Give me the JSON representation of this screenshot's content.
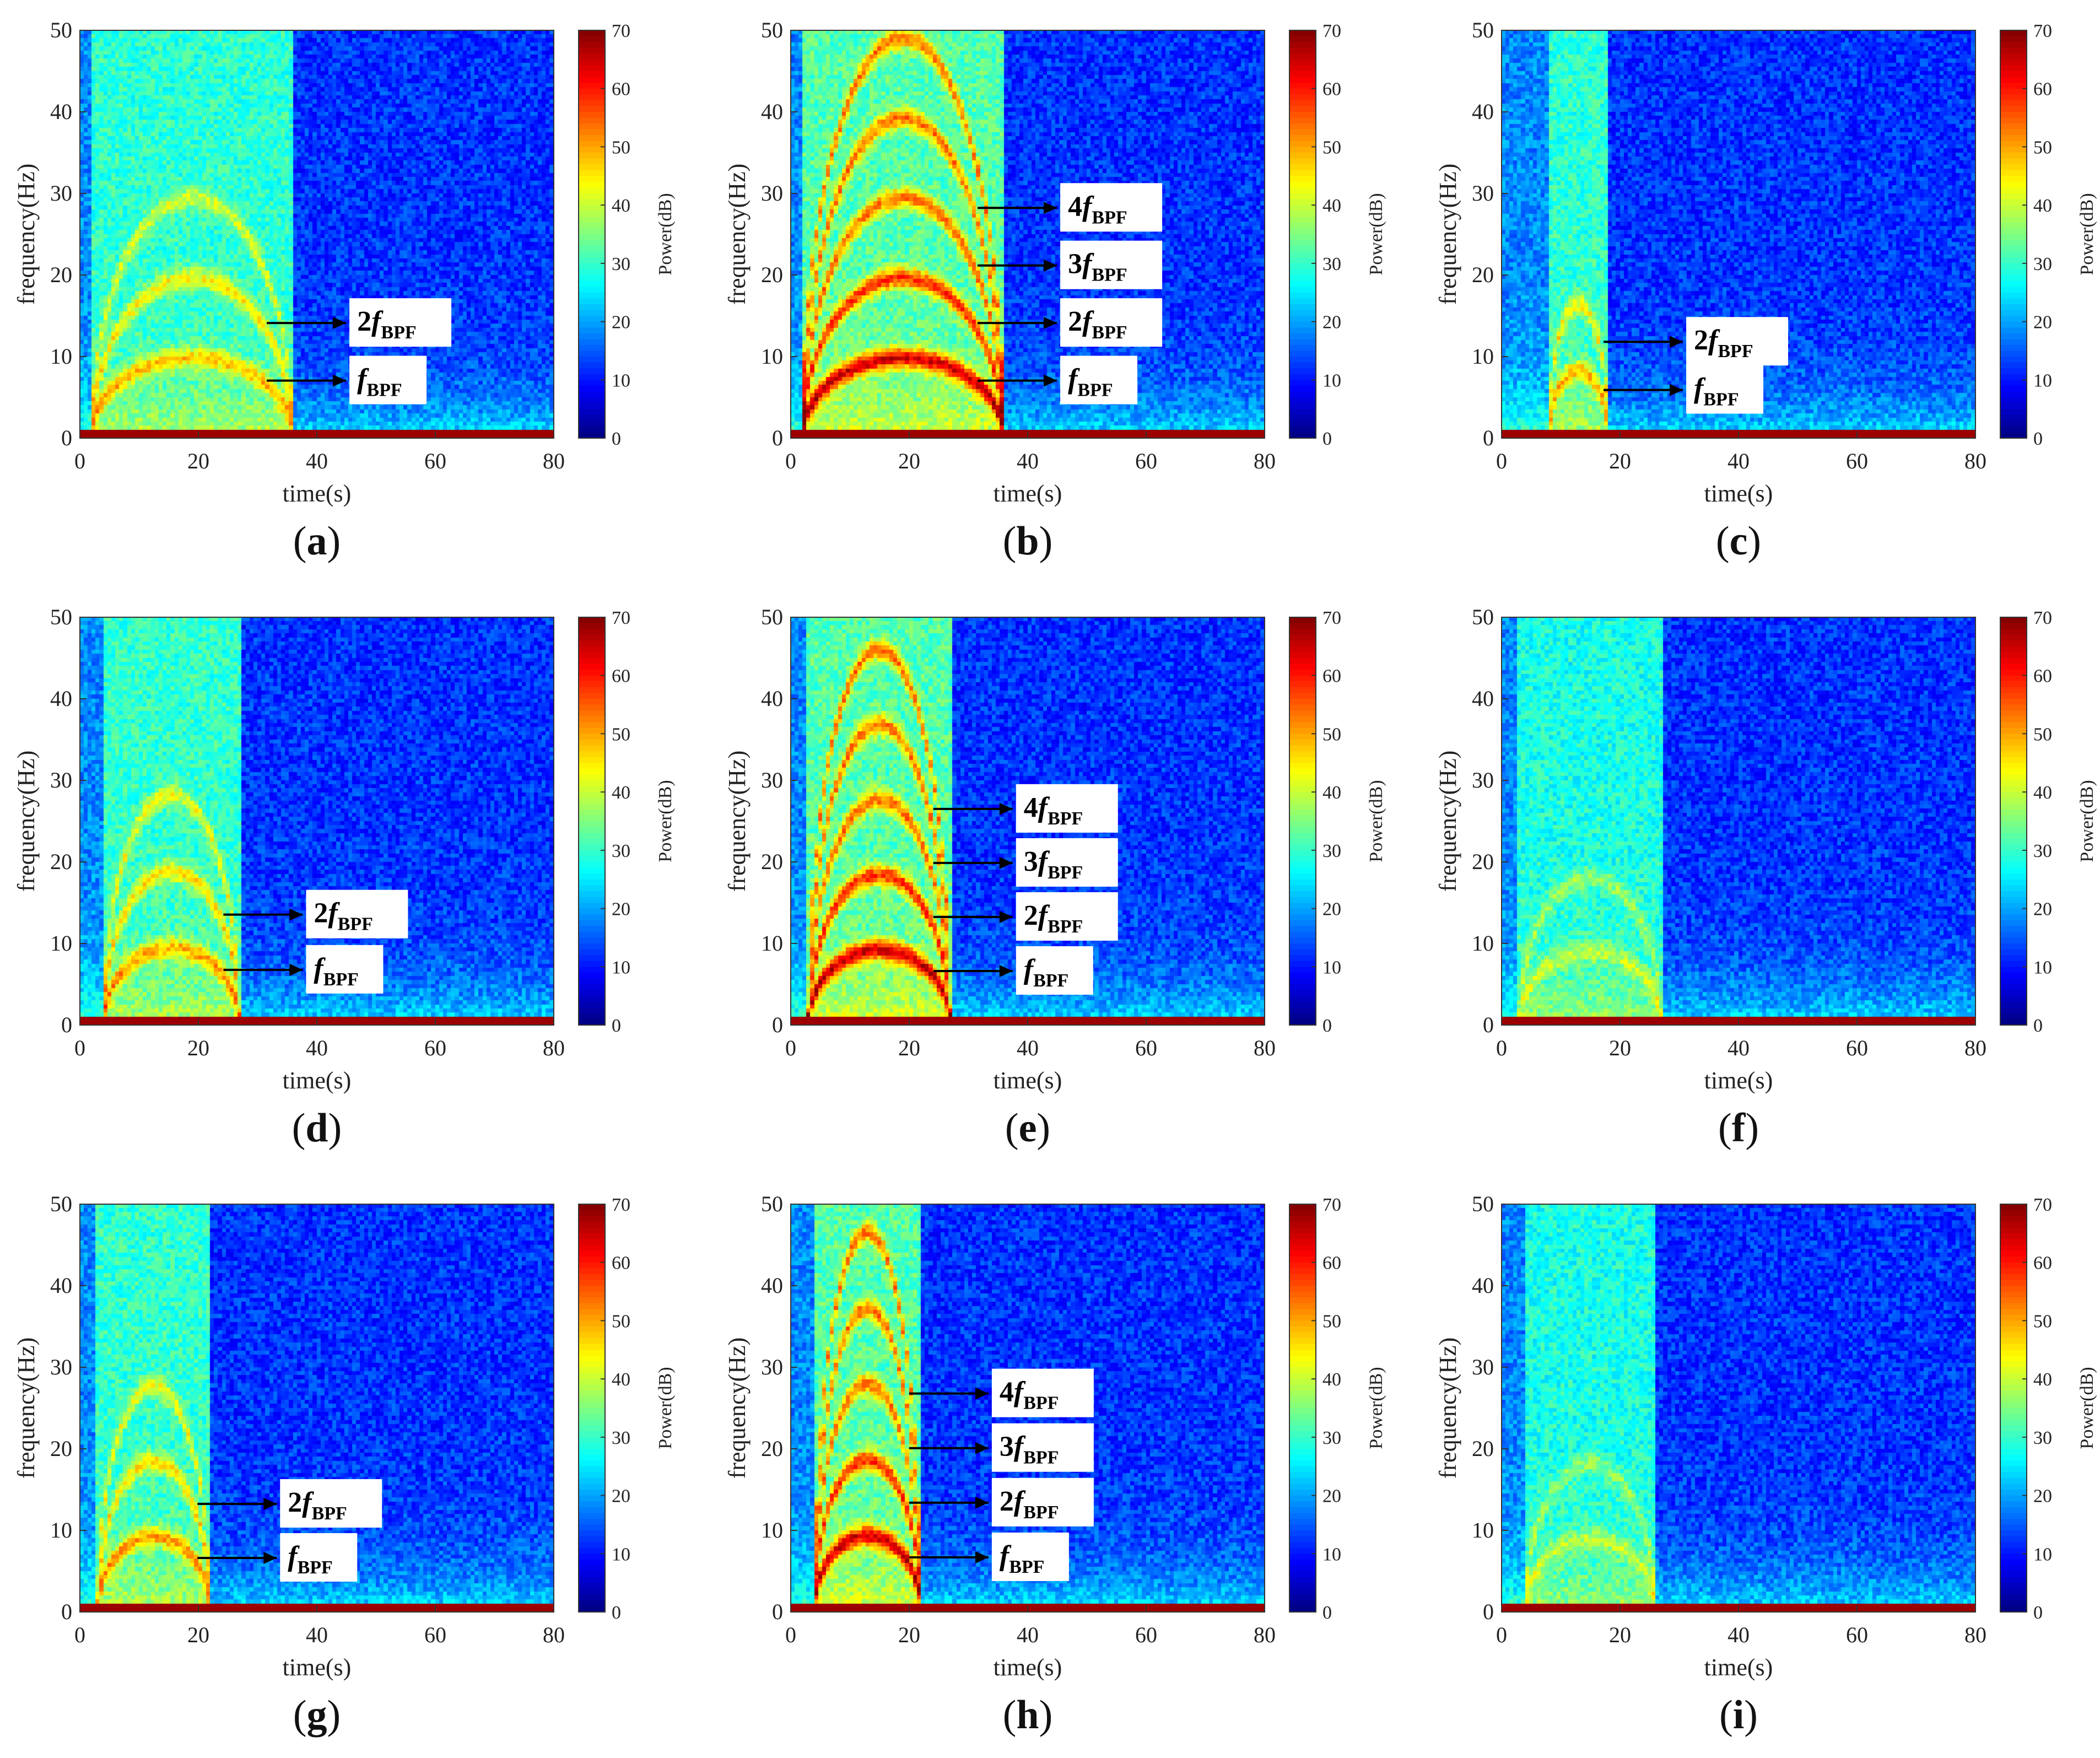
{
  "colorbar": {
    "label": "Power(dB)",
    "ticks": [
      0,
      10,
      20,
      30,
      40,
      50,
      60,
      70
    ],
    "range": [
      0,
      70
    ]
  },
  "axes": {
    "xlabel": "time(s)",
    "ylabel": "frequency(Hz)",
    "xticks": [
      0,
      20,
      40,
      60,
      80
    ],
    "yticks": [
      0,
      10,
      20,
      30,
      40,
      50
    ],
    "xlim": [
      0,
      80
    ],
    "ylim": [
      0,
      50
    ]
  },
  "harmonic_labels": {
    "1": "f",
    "2": "2f",
    "3": "3f",
    "4": "4f",
    "subscript": "BPF"
  },
  "chart_data": [
    {
      "type": "heatmap",
      "id": "a",
      "caption": "a",
      "title": "",
      "xlabel": "time(s)",
      "ylabel": "frequency(Hz)",
      "xlim": [
        0,
        80
      ],
      "ylim": [
        0,
        50
      ],
      "pass_start_s": 2,
      "pass_end_s": 36,
      "fundamental_peak_hz": 9.8,
      "harmonics_visible": [
        1,
        2,
        3
      ],
      "intensity": 0.55,
      "annotations": [
        "2fBPF",
        "fBPF"
      ]
    },
    {
      "type": "heatmap",
      "id": "b",
      "caption": "b",
      "title": "",
      "xlabel": "time(s)",
      "ylabel": "frequency(Hz)",
      "xlim": [
        0,
        80
      ],
      "ylim": [
        0,
        50
      ],
      "pass_start_s": 2,
      "pass_end_s": 36,
      "fundamental_peak_hz": 9.8,
      "harmonics_visible": [
        1,
        2,
        3,
        4,
        5
      ],
      "intensity": 1.0,
      "annotations": [
        "4fBPF",
        "3fBPF",
        "2fBPF",
        "fBPF"
      ]
    },
    {
      "type": "heatmap",
      "id": "c",
      "caption": "c",
      "title": "",
      "xlabel": "time(s)",
      "ylabel": "frequency(Hz)",
      "xlim": [
        0,
        80
      ],
      "ylim": [
        0,
        50
      ],
      "pass_start_s": 8,
      "pass_end_s": 18,
      "fundamental_peak_hz": 8.2,
      "harmonics_visible": [
        1,
        2
      ],
      "intensity": 0.55,
      "annotations": [
        "2fBPF",
        "fBPF"
      ]
    },
    {
      "type": "heatmap",
      "id": "d",
      "caption": "d",
      "title": "",
      "xlabel": "time(s)",
      "ylabel": "frequency(Hz)",
      "xlim": [
        0,
        80
      ],
      "ylim": [
        0,
        50
      ],
      "pass_start_s": 4,
      "pass_end_s": 27,
      "fundamental_peak_hz": 9.4,
      "harmonics_visible": [
        1,
        2,
        3
      ],
      "intensity": 0.6,
      "annotations": [
        "2fBPF",
        "fBPF"
      ]
    },
    {
      "type": "heatmap",
      "id": "e",
      "caption": "e",
      "title": "",
      "xlabel": "time(s)",
      "ylabel": "frequency(Hz)",
      "xlim": [
        0,
        80
      ],
      "ylim": [
        0,
        50
      ],
      "pass_start_s": 3,
      "pass_end_s": 27,
      "fundamental_peak_hz": 9.2,
      "harmonics_visible": [
        1,
        2,
        3,
        4,
        5
      ],
      "intensity": 1.0,
      "annotations": [
        "4fBPF",
        "3fBPF",
        "2fBPF",
        "fBPF"
      ]
    },
    {
      "type": "heatmap",
      "id": "f",
      "caption": "f",
      "title": "",
      "xlabel": "time(s)",
      "ylabel": "frequency(Hz)",
      "xlim": [
        0,
        80
      ],
      "ylim": [
        0,
        50
      ],
      "pass_start_s": 3,
      "pass_end_s": 27,
      "fundamental_peak_hz": 9.0,
      "harmonics_visible": [
        1,
        2
      ],
      "intensity": 0.3,
      "annotations": []
    },
    {
      "type": "heatmap",
      "id": "g",
      "caption": "g",
      "title": "",
      "xlabel": "time(s)",
      "ylabel": "frequency(Hz)",
      "xlim": [
        0,
        80
      ],
      "ylim": [
        0,
        50
      ],
      "pass_start_s": 3,
      "pass_end_s": 22,
      "fundamental_peak_hz": 9.2,
      "harmonics_visible": [
        1,
        2,
        3
      ],
      "intensity": 0.6,
      "annotations": [
        "2fBPF",
        "fBPF"
      ]
    },
    {
      "type": "heatmap",
      "id": "h",
      "caption": "h",
      "title": "",
      "xlabel": "time(s)",
      "ylabel": "frequency(Hz)",
      "xlim": [
        0,
        80
      ],
      "ylim": [
        0,
        50
      ],
      "pass_start_s": 4,
      "pass_end_s": 22,
      "fundamental_peak_hz": 9.3,
      "harmonics_visible": [
        1,
        2,
        3,
        4,
        5
      ],
      "intensity": 1.0,
      "annotations": [
        "4fBPF",
        "3fBPF",
        "2fBPF",
        "fBPF"
      ]
    },
    {
      "type": "heatmap",
      "id": "i",
      "caption": "i",
      "title": "",
      "xlabel": "time(s)",
      "ylabel": "frequency(Hz)",
      "xlim": [
        0,
        80
      ],
      "ylim": [
        0,
        50
      ],
      "pass_start_s": 4,
      "pass_end_s": 26,
      "fundamental_peak_hz": 9.0,
      "harmonics_visible": [
        1,
        2
      ],
      "intensity": 0.3,
      "annotations": []
    }
  ]
}
